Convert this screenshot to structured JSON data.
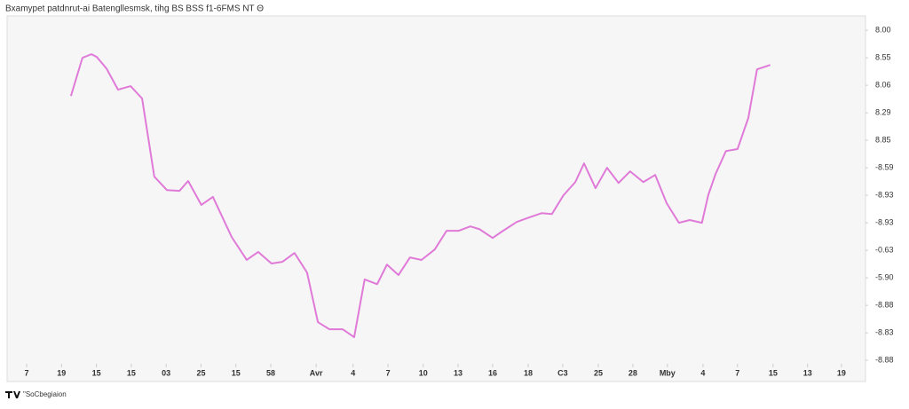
{
  "chart_data": {
    "type": "line",
    "title": "Bxamypet patdnrut-ai Batengllesmsk, tihg BS BSS f1-6FMS NT Θ",
    "watermark": "\"SoCbegiaion",
    "xlim": [
      -0.56,
      24.05
    ],
    "ylim": [
      -0.77,
      12.52
    ],
    "xticks": [
      {
        "value": 0,
        "label": "7"
      },
      {
        "value": 1,
        "label": "19"
      },
      {
        "value": 2,
        "label": "15"
      },
      {
        "value": 3,
        "label": "15"
      },
      {
        "value": 4,
        "label": "03"
      },
      {
        "value": 5,
        "label": "25"
      },
      {
        "value": 6,
        "label": "15"
      },
      {
        "value": 7,
        "label": "58"
      },
      {
        "value": 8.3,
        "label": "Avr"
      },
      {
        "value": 9.36,
        "label": "4"
      },
      {
        "value": 10.36,
        "label": "7"
      },
      {
        "value": 11.37,
        "label": "10"
      },
      {
        "value": 12.37,
        "label": "13"
      },
      {
        "value": 13.36,
        "label": "16"
      },
      {
        "value": 14.38,
        "label": "18"
      },
      {
        "value": 15.37,
        "label": "C3"
      },
      {
        "value": 16.39,
        "label": "25"
      },
      {
        "value": 17.38,
        "label": "28"
      },
      {
        "value": 18.37,
        "label": "Mby"
      },
      {
        "value": 19.39,
        "label": "4"
      },
      {
        "value": 20.38,
        "label": "7"
      },
      {
        "value": 21.4,
        "label": "15"
      },
      {
        "value": 22.39,
        "label": "13"
      },
      {
        "value": 23.36,
        "label": "19"
      }
    ],
    "yticks": [
      {
        "value": 12,
        "label": "8.00"
      },
      {
        "value": 11,
        "label": "8.55"
      },
      {
        "value": 10,
        "label": "8.06"
      },
      {
        "value": 9,
        "label": "8.29"
      },
      {
        "value": 8,
        "label": "8.85"
      },
      {
        "value": 7,
        "label": "-8.59"
      },
      {
        "value": 6,
        "label": "-8.93"
      },
      {
        "value": 5,
        "label": "-8.93"
      },
      {
        "value": 4,
        "label": "-0.63"
      },
      {
        "value": 3,
        "label": "-5.90"
      },
      {
        "value": 2,
        "label": "-8.88"
      },
      {
        "value": 1,
        "label": "-8.83"
      },
      {
        "value": 0,
        "label": "-8.88"
      }
    ],
    "x": [
      1.27,
      1.6,
      1.86,
      2.01,
      2.29,
      2.62,
      2.98,
      3.31,
      3.66,
      4.02,
      4.38,
      4.63,
      5.01,
      5.34,
      5.88,
      6.31,
      6.64,
      7.02,
      7.33,
      7.68,
      8.04,
      8.35,
      8.68,
      9.06,
      9.39,
      9.69,
      10.05,
      10.33,
      10.66,
      10.99,
      11.32,
      11.7,
      12.04,
      12.39,
      12.72,
      12.98,
      13.36,
      13.66,
      14.05,
      14.4,
      14.76,
      15.06,
      15.39,
      15.73,
      15.98,
      16.31,
      16.64,
      16.97,
      17.3,
      17.68,
      18.02,
      18.35,
      18.7,
      19.01,
      19.36,
      19.54,
      19.75,
      20.05,
      20.38,
      20.69,
      20.94,
      21.32
    ],
    "series": [
      {
        "color": "#e07ad8",
        "values": [
          9.61,
          11.0,
          11.13,
          11.03,
          10.61,
          9.84,
          9.97,
          9.52,
          6.68,
          6.19,
          6.16,
          6.52,
          5.65,
          5.94,
          4.48,
          3.65,
          3.94,
          3.52,
          3.58,
          3.9,
          3.19,
          1.39,
          1.13,
          1.13,
          0.84,
          2.94,
          2.77,
          3.48,
          3.1,
          3.74,
          3.65,
          4.03,
          4.71,
          4.71,
          4.87,
          4.77,
          4.45,
          4.71,
          5.03,
          5.19,
          5.35,
          5.32,
          6.0,
          6.48,
          7.16,
          6.26,
          7.0,
          6.45,
          6.87,
          6.48,
          6.74,
          5.71,
          5.0,
          5.1,
          5.0,
          6.0,
          6.77,
          7.61,
          7.68,
          8.81,
          10.58,
          10.74
        ]
      }
    ],
    "grid": false
  }
}
